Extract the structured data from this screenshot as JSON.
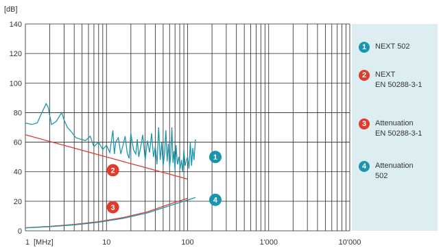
{
  "chart_data": {
    "type": "line",
    "y_unit": "[dB]",
    "x_unit_label": "[MHz]",
    "x_scale": "log",
    "xlim": [
      1,
      10000
    ],
    "ylim": [
      0,
      140
    ],
    "grid": true,
    "legend_position": "right",
    "x_ticks": [
      {
        "value": 1,
        "label": "1"
      },
      {
        "value": 10,
        "label": "10"
      },
      {
        "value": 100,
        "label": "100"
      },
      {
        "value": 1000,
        "label": "1'000"
      },
      {
        "value": 10000,
        "label": "10'000"
      }
    ],
    "y_ticks": [
      0,
      20,
      40,
      60,
      80,
      100,
      120,
      140
    ],
    "series": [
      {
        "id": 1,
        "name": "NEXT 502",
        "color": "#1a95ad",
        "x": [
          1,
          1.2,
          1.4,
          1.6,
          1.8,
          1.9,
          2.1,
          2.4,
          2.8,
          3,
          3.3,
          3.7,
          4.2,
          4.8,
          5.5,
          6.3,
          7,
          8,
          9,
          10,
          11,
          12,
          12.5,
          13,
          14,
          15,
          16,
          17,
          18,
          19,
          20,
          21.5,
          23,
          24,
          25,
          26.5,
          28,
          30,
          32,
          34,
          36,
          38,
          40,
          42,
          44,
          46,
          48,
          50,
          52,
          54,
          56,
          58,
          60,
          62,
          64,
          66,
          68,
          70,
          72,
          75,
          78,
          81,
          84,
          87,
          90,
          93,
          96,
          100,
          104,
          108,
          112,
          116,
          120,
          125
        ],
        "y": [
          73,
          72,
          73,
          80,
          86,
          84,
          72,
          74,
          80,
          75,
          70,
          67,
          63,
          62,
          61,
          64,
          57,
          60,
          55,
          58,
          53,
          68,
          52,
          60,
          63,
          52,
          58,
          64,
          53,
          49,
          66,
          55,
          52,
          62,
          50,
          57,
          65,
          48,
          61,
          53,
          66,
          50,
          57,
          45,
          70,
          48,
          60,
          44,
          52,
          68,
          47,
          59,
          43,
          51,
          70,
          46,
          54,
          41,
          58,
          45,
          50,
          42,
          48,
          40,
          55,
          44,
          47,
          50,
          42,
          60,
          44,
          56,
          48,
          62
        ]
      },
      {
        "id": 2,
        "name": "NEXT\nEN 50288-3-1",
        "color": "#e03c2d",
        "x": [
          1,
          100
        ],
        "y": [
          65,
          35
        ]
      },
      {
        "id": 3,
        "name": "Attenuation\nEN 50288-3-1",
        "color": "#e03c2d",
        "x": [
          1,
          2,
          4,
          8,
          16,
          32,
          64,
          100
        ],
        "y": [
          2.1,
          3.0,
          4.3,
          6.2,
          9.0,
          12.9,
          18.6,
          22.0
        ]
      },
      {
        "id": 4,
        "name": "Attenuation\n502",
        "color": "#1a95ad",
        "x": [
          1,
          2,
          4,
          8,
          16,
          32,
          64,
          100,
          125
        ],
        "y": [
          2.0,
          2.8,
          4.0,
          5.8,
          8.4,
          12.1,
          17.5,
          20.8,
          22.6
        ]
      }
    ],
    "badges": [
      {
        "id": 1,
        "label": "1",
        "color": "#1a95ad",
        "x": 220,
        "y": 50
      },
      {
        "id": 2,
        "label": "2",
        "color": "#e03c2d",
        "x": 12,
        "y": 41
      },
      {
        "id": 3,
        "label": "3",
        "color": "#e03c2d",
        "x": 12,
        "y": 16
      },
      {
        "id": 4,
        "label": "4",
        "color": "#1a95ad",
        "x": 220,
        "y": 21
      }
    ]
  },
  "legend": [
    {
      "num": "1",
      "color": "#1a95ad",
      "label": "NEXT 502"
    },
    {
      "num": "2",
      "color": "#e03c2d",
      "label": "NEXT\nEN 50288-3-1"
    },
    {
      "num": "3",
      "color": "#e03c2d",
      "label": "Attenuation\nEN 50288-3-1"
    },
    {
      "num": "4",
      "color": "#1a95ad",
      "label": "Attenuation\n502"
    }
  ]
}
